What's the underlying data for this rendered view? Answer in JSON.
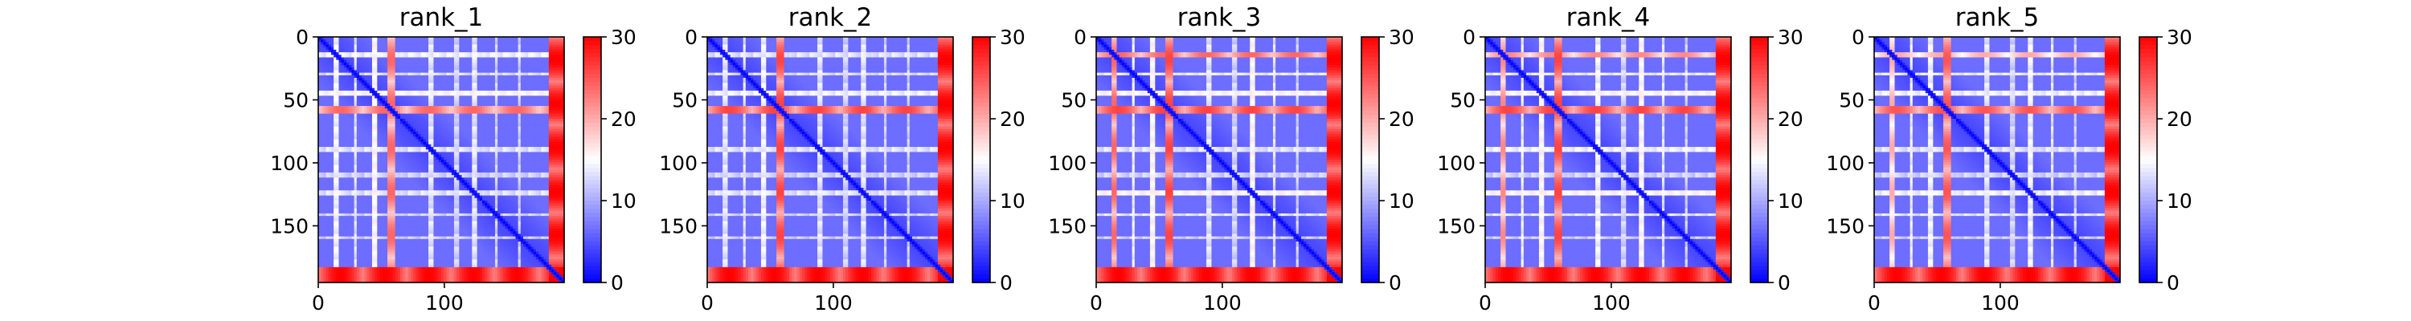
{
  "chart_data": [
    {
      "type": "heatmap",
      "title": "rank_1",
      "matrix_size": 195,
      "xlim": [
        0,
        195
      ],
      "ylim": [
        195,
        0
      ],
      "xticks": [
        0,
        100
      ],
      "yticks": [
        0,
        50,
        100,
        150
      ],
      "colorbar": {
        "min": 0,
        "max": 30,
        "ticks": [
          0,
          10,
          20,
          30
        ],
        "colormap": "bwr"
      },
      "diagonal_value": 0,
      "background_value": 4,
      "high_bands": [
        {
          "start": 55,
          "end": 60,
          "value": 24
        },
        {
          "start": 183,
          "end": 195,
          "value": 30
        }
      ],
      "light_bands": [
        {
          "start": 13,
          "end": 16,
          "value": 15
        },
        {
          "start": 28,
          "end": 31,
          "value": 14
        },
        {
          "start": 43,
          "end": 46,
          "value": 16
        },
        {
          "start": 88,
          "end": 91,
          "value": 14
        },
        {
          "start": 108,
          "end": 111,
          "value": 13
        },
        {
          "start": 122,
          "end": 125,
          "value": 14
        },
        {
          "start": 140,
          "end": 143,
          "value": 13
        },
        {
          "start": 158,
          "end": 161,
          "value": 13
        }
      ]
    },
    {
      "type": "heatmap",
      "title": "rank_2",
      "matrix_size": 195,
      "xlim": [
        0,
        195
      ],
      "ylim": [
        195,
        0
      ],
      "xticks": [
        0,
        100
      ],
      "yticks": [
        0,
        50,
        100,
        150
      ],
      "colorbar": {
        "min": 0,
        "max": 30,
        "ticks": [
          0,
          10,
          20,
          30
        ],
        "colormap": "bwr"
      },
      "diagonal_value": 0,
      "background_value": 4,
      "high_bands": [
        {
          "start": 55,
          "end": 60,
          "value": 26
        },
        {
          "start": 183,
          "end": 195,
          "value": 30
        }
      ],
      "light_bands": [
        {
          "start": 13,
          "end": 16,
          "value": 14
        },
        {
          "start": 28,
          "end": 31,
          "value": 14
        },
        {
          "start": 43,
          "end": 46,
          "value": 15
        },
        {
          "start": 88,
          "end": 91,
          "value": 14
        },
        {
          "start": 108,
          "end": 111,
          "value": 13
        },
        {
          "start": 122,
          "end": 125,
          "value": 14
        },
        {
          "start": 140,
          "end": 143,
          "value": 13
        },
        {
          "start": 158,
          "end": 161,
          "value": 13
        }
      ]
    },
    {
      "type": "heatmap",
      "title": "rank_3",
      "matrix_size": 195,
      "xlim": [
        0,
        195
      ],
      "ylim": [
        195,
        0
      ],
      "xticks": [
        0,
        100
      ],
      "yticks": [
        0,
        50,
        100,
        150
      ],
      "colorbar": {
        "min": 0,
        "max": 30,
        "ticks": [
          0,
          10,
          20,
          30
        ],
        "colormap": "bwr"
      },
      "diagonal_value": 0,
      "background_value": 4,
      "high_bands": [
        {
          "start": 13,
          "end": 17,
          "value": 24
        },
        {
          "start": 55,
          "end": 60,
          "value": 26
        },
        {
          "start": 183,
          "end": 195,
          "value": 30
        }
      ],
      "light_bands": [
        {
          "start": 28,
          "end": 31,
          "value": 15
        },
        {
          "start": 43,
          "end": 46,
          "value": 16
        },
        {
          "start": 88,
          "end": 91,
          "value": 14
        },
        {
          "start": 108,
          "end": 111,
          "value": 13
        },
        {
          "start": 122,
          "end": 125,
          "value": 16
        },
        {
          "start": 140,
          "end": 143,
          "value": 14
        },
        {
          "start": 158,
          "end": 161,
          "value": 13
        }
      ]
    },
    {
      "type": "heatmap",
      "title": "rank_4",
      "matrix_size": 195,
      "xlim": [
        0,
        195
      ],
      "ylim": [
        195,
        0
      ],
      "xticks": [
        0,
        100
      ],
      "yticks": [
        0,
        50,
        100,
        150
      ],
      "colorbar": {
        "min": 0,
        "max": 30,
        "ticks": [
          0,
          10,
          20,
          30
        ],
        "colormap": "bwr"
      },
      "diagonal_value": 0,
      "background_value": 4,
      "high_bands": [
        {
          "start": 13,
          "end": 17,
          "value": 22
        },
        {
          "start": 55,
          "end": 60,
          "value": 26
        },
        {
          "start": 183,
          "end": 195,
          "value": 30
        }
      ],
      "light_bands": [
        {
          "start": 28,
          "end": 31,
          "value": 15
        },
        {
          "start": 43,
          "end": 46,
          "value": 16
        },
        {
          "start": 88,
          "end": 91,
          "value": 15
        },
        {
          "start": 108,
          "end": 111,
          "value": 13
        },
        {
          "start": 122,
          "end": 125,
          "value": 16
        },
        {
          "start": 140,
          "end": 143,
          "value": 14
        },
        {
          "start": 158,
          "end": 161,
          "value": 13
        }
      ]
    },
    {
      "type": "heatmap",
      "title": "rank_5",
      "matrix_size": 195,
      "xlim": [
        0,
        195
      ],
      "ylim": [
        195,
        0
      ],
      "xticks": [
        0,
        100
      ],
      "yticks": [
        0,
        50,
        100,
        150
      ],
      "colorbar": {
        "min": 0,
        "max": 30,
        "ticks": [
          0,
          10,
          20,
          30
        ],
        "colormap": "bwr"
      },
      "diagonal_value": 0,
      "background_value": 4,
      "high_bands": [
        {
          "start": 13,
          "end": 17,
          "value": 20
        },
        {
          "start": 55,
          "end": 60,
          "value": 25
        },
        {
          "start": 183,
          "end": 195,
          "value": 30
        }
      ],
      "light_bands": [
        {
          "start": 28,
          "end": 31,
          "value": 15
        },
        {
          "start": 43,
          "end": 46,
          "value": 15
        },
        {
          "start": 88,
          "end": 91,
          "value": 14
        },
        {
          "start": 108,
          "end": 111,
          "value": 13
        },
        {
          "start": 122,
          "end": 125,
          "value": 15
        },
        {
          "start": 140,
          "end": 143,
          "value": 14
        },
        {
          "start": 158,
          "end": 161,
          "value": 13
        }
      ]
    }
  ]
}
